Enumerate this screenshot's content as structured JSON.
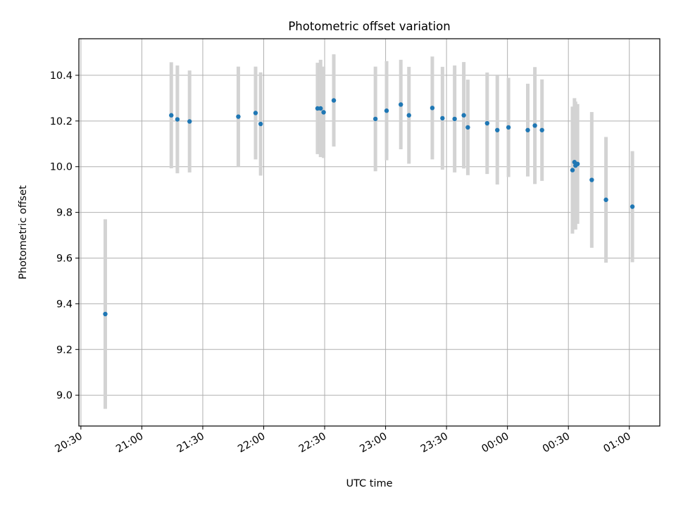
{
  "chart_data": {
    "type": "scatter",
    "title": "Photometric offset variation",
    "xlabel": "UTC time",
    "ylabel": "Photometric offset",
    "grid": true,
    "colors": {
      "point": "#1f77b4",
      "errorbar": "#d3d3d3",
      "grid": "#b0b0b0"
    },
    "xlim": [
      "20:29",
      "01:15"
    ],
    "ylim": [
      8.865,
      10.56
    ],
    "x_ticks": [
      "20:30",
      "21:00",
      "21:30",
      "22:00",
      "22:30",
      "23:00",
      "23:30",
      "00:00",
      "00:30",
      "01:00"
    ],
    "y_ticks": [
      "9.0",
      "9.2",
      "9.4",
      "9.6",
      "9.8",
      "10.0",
      "10.2",
      "10.4"
    ],
    "points": [
      {
        "t": "20:42:00",
        "y": 9.355,
        "err": 0.415
      },
      {
        "t": "21:14:30",
        "y": 10.225,
        "err": 0.232
      },
      {
        "t": "21:17:30",
        "y": 10.207,
        "err": 0.236
      },
      {
        "t": "21:23:30",
        "y": 10.198,
        "err": 0.223
      },
      {
        "t": "21:47:30",
        "y": 10.219,
        "err": 0.219
      },
      {
        "t": "21:56:00",
        "y": 10.235,
        "err": 0.203
      },
      {
        "t": "21:58:30",
        "y": 10.187,
        "err": 0.226
      },
      {
        "t": "22:26:30",
        "y": 10.255,
        "err": 0.2
      },
      {
        "t": "22:28:00",
        "y": 10.255,
        "err": 0.213
      },
      {
        "t": "22:29:30",
        "y": 10.238,
        "err": 0.2
      },
      {
        "t": "22:34:30",
        "y": 10.29,
        "err": 0.202
      },
      {
        "t": "22:55:00",
        "y": 10.209,
        "err": 0.229
      },
      {
        "t": "23:00:30",
        "y": 10.245,
        "err": 0.217
      },
      {
        "t": "23:07:30",
        "y": 10.272,
        "err": 0.196
      },
      {
        "t": "23:11:30",
        "y": 10.225,
        "err": 0.212
      },
      {
        "t": "23:23:00",
        "y": 10.257,
        "err": 0.225
      },
      {
        "t": "23:28:00",
        "y": 10.212,
        "err": 0.225
      },
      {
        "t": "23:34:00",
        "y": 10.209,
        "err": 0.234
      },
      {
        "t": "23:38:30",
        "y": 10.225,
        "err": 0.233
      },
      {
        "t": "23:40:30",
        "y": 10.172,
        "err": 0.209
      },
      {
        "t": "23:50:00",
        "y": 10.19,
        "err": 0.222
      },
      {
        "t": "23:55:00",
        "y": 10.16,
        "err": 0.238
      },
      {
        "t": "00:00:30",
        "y": 10.172,
        "err": 0.217
      },
      {
        "t": "00:10:00",
        "y": 10.16,
        "err": 0.203
      },
      {
        "t": "00:13:30",
        "y": 10.18,
        "err": 0.256
      },
      {
        "t": "00:17:00",
        "y": 10.16,
        "err": 0.222
      },
      {
        "t": "00:32:00",
        "y": 9.985,
        "err": 0.278
      },
      {
        "t": "00:33:00",
        "y": 10.02,
        "err": 0.28
      },
      {
        "t": "00:33:30",
        "y": 10.005,
        "err": 0.28
      },
      {
        "t": "00:34:30",
        "y": 10.012,
        "err": 0.262
      },
      {
        "t": "00:41:30",
        "y": 9.942,
        "err": 0.297
      },
      {
        "t": "00:48:30",
        "y": 9.855,
        "err": 0.275
      },
      {
        "t": "01:01:30",
        "y": 9.825,
        "err": 0.243
      }
    ]
  }
}
